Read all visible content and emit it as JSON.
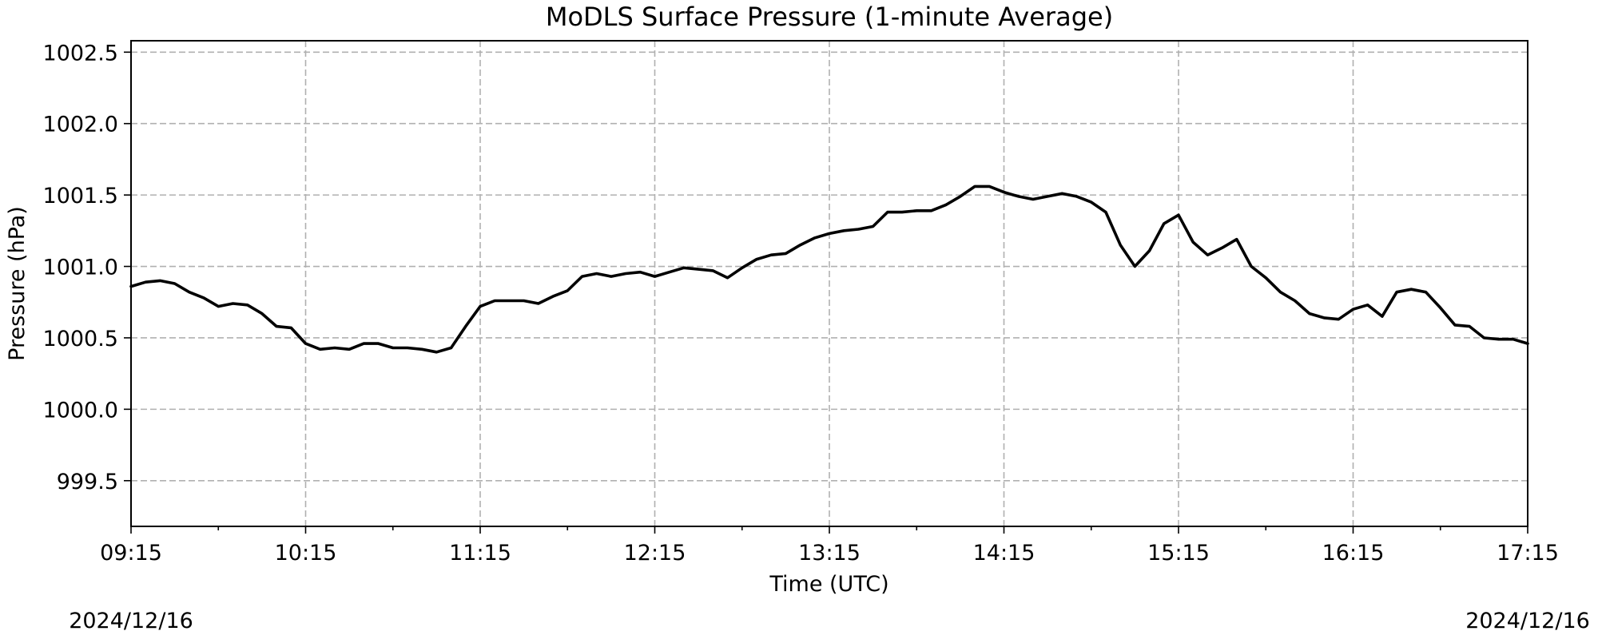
{
  "chart_data": {
    "type": "line",
    "title": "MoDLS Surface Pressure (1-minute Average)",
    "xlabel": "Time (UTC)",
    "ylabel": "Pressure (hPa)",
    "x_start_label": "09:15",
    "x_end_label": "17:15",
    "date_left": "2024/12/16",
    "date_right": "2024/12/16",
    "xlim": [
      "09:15",
      "17:15"
    ],
    "ylim": [
      999.18,
      1002.58
    ],
    "x_ticks": [
      "09:15",
      "10:15",
      "11:15",
      "12:15",
      "13:15",
      "14:15",
      "15:15",
      "16:15",
      "17:15"
    ],
    "x_minor_ticks": [
      "09:45",
      "10:45",
      "11:45",
      "12:45",
      "13:45",
      "14:45",
      "15:45",
      "16:45"
    ],
    "y_ticks": [
      "999.5",
      "1000.0",
      "1000.5",
      "1001.0",
      "1001.5",
      "1002.0",
      "1002.5"
    ],
    "grid": true,
    "line_color": "#000000",
    "series": [
      {
        "x": [
          "09:15",
          "09:20",
          "09:25",
          "09:30",
          "09:35",
          "09:40",
          "09:45",
          "09:50",
          "09:55",
          "10:00",
          "10:05",
          "10:10",
          "10:15",
          "10:20",
          "10:25",
          "10:30",
          "10:35",
          "10:40",
          "10:45",
          "10:50",
          "10:55",
          "11:00",
          "11:05",
          "11:10",
          "11:15",
          "11:20",
          "11:25",
          "11:30",
          "11:35",
          "11:40",
          "11:45",
          "11:50",
          "11:55",
          "12:00",
          "12:05",
          "12:10",
          "12:15",
          "12:20",
          "12:25",
          "12:30",
          "12:35",
          "12:40",
          "12:45",
          "12:50",
          "12:55",
          "13:00",
          "13:05",
          "13:10",
          "13:15",
          "13:20",
          "13:25",
          "13:30",
          "13:35",
          "13:40",
          "13:45",
          "13:50",
          "13:55",
          "14:00",
          "14:05",
          "14:10",
          "14:15",
          "14:20",
          "14:25",
          "14:30",
          "14:35",
          "14:40",
          "14:45",
          "14:50",
          "14:55",
          "15:00",
          "15:05",
          "15:10",
          "15:15",
          "15:20",
          "15:25",
          "15:30",
          "15:35",
          "15:40",
          "15:45",
          "15:50",
          "15:55",
          "16:00",
          "16:05",
          "16:10",
          "16:15",
          "16:20",
          "16:25",
          "16:30",
          "16:35",
          "16:40",
          "16:45",
          "16:50",
          "16:55",
          "17:00",
          "17:05",
          "17:10",
          "17:15"
        ],
        "y": [
          1000.86,
          1000.89,
          1000.9,
          1000.88,
          1000.82,
          1000.78,
          1000.72,
          1000.74,
          1000.73,
          1000.67,
          1000.58,
          1000.57,
          1000.46,
          1000.42,
          1000.43,
          1000.42,
          1000.46,
          1000.46,
          1000.43,
          1000.43,
          1000.42,
          1000.4,
          1000.43,
          1000.58,
          1000.72,
          1000.76,
          1000.76,
          1000.76,
          1000.74,
          1000.79,
          1000.83,
          1000.93,
          1000.95,
          1000.93,
          1000.95,
          1000.96,
          1000.93,
          1000.96,
          1000.99,
          1000.98,
          1000.97,
          1000.92,
          1000.99,
          1001.05,
          1001.08,
          1001.09,
          1001.15,
          1001.2,
          1001.23,
          1001.25,
          1001.26,
          1001.28,
          1001.38,
          1001.38,
          1001.39,
          1001.39,
          1001.43,
          1001.49,
          1001.56,
          1001.56,
          1001.52,
          1001.49,
          1001.47,
          1001.49,
          1001.51,
          1001.49,
          1001.45,
          1001.38,
          1001.15,
          1001.0,
          1001.11,
          1001.3,
          1001.36,
          1001.17,
          1001.08,
          1001.13,
          1001.19,
          1001.0,
          1000.92,
          1000.82,
          1000.76,
          1000.67,
          1000.64,
          1000.63,
          1000.7,
          1000.73,
          1000.65,
          1000.82,
          1000.84,
          1000.82,
          1000.71,
          1000.59,
          1000.58,
          1000.5,
          1000.49,
          1000.49,
          1000.46
        ]
      }
    ]
  }
}
